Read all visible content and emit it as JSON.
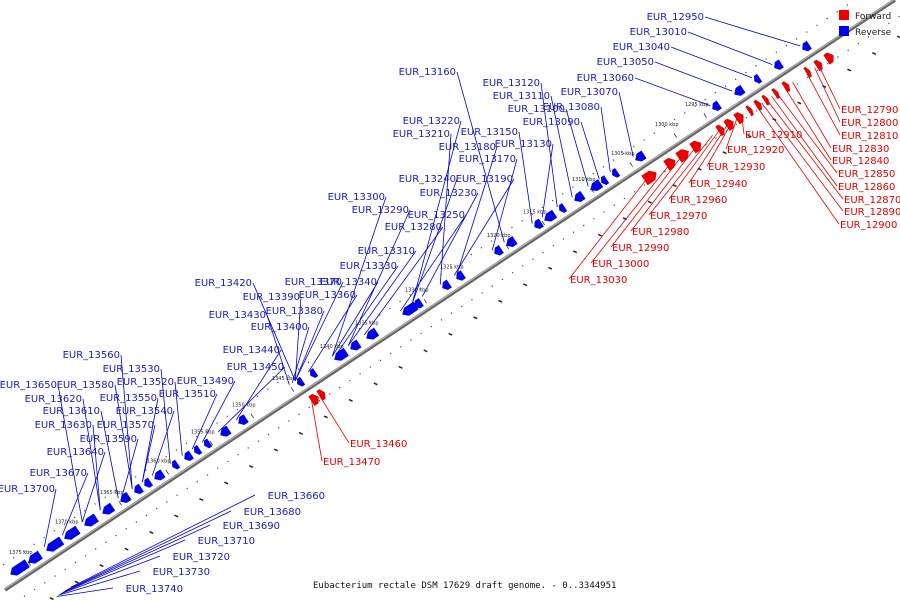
{
  "caption": "Eubacterium rectale DSM 17629 draft genome. - 0..3344951",
  "legend": [
    {
      "label": "Forward",
      "color": "#ee0000"
    },
    {
      "label": "Reverse",
      "color": "#0000ee"
    }
  ],
  "scale_ticks": [
    "1295 kbp",
    "1300 kbp",
    "1305 kbp",
    "1310 kbp",
    "1315 kbp",
    "1320 kbp",
    "1325 kbp",
    "1330 kbp",
    "1335 kbp",
    "1340 kbp",
    "1345 kbp",
    "1350 kbp",
    "1355 kbp",
    "1360 kbp",
    "1365 kbp",
    "1370 kbp",
    "1375 kbp"
  ],
  "forward_genes": [
    "EUR_12790",
    "EUR_12800",
    "EUR_12810",
    "EUR_12830",
    "EUR_12840",
    "EUR_12850",
    "EUR_12860",
    "EUR_12870",
    "EUR_12890",
    "EUR_12900",
    "EUR_12910",
    "EUR_12920",
    "EUR_12930",
    "EUR_12940",
    "EUR_12960",
    "EUR_12970",
    "EUR_12980",
    "EUR_12990",
    "EUR_13000",
    "EUR_13030",
    "EUR_13460",
    "EUR_13470"
  ],
  "reverse_genes": [
    "EUR_12950",
    "EUR_13010",
    "EUR_13040",
    "EUR_13050",
    "EUR_13060",
    "EUR_13070",
    "EUR_13080",
    "EUR_13090",
    "EUR_13100",
    "EUR_13110",
    "EUR_13120",
    "EUR_13130",
    "EUR_13150",
    "EUR_13160",
    "EUR_13170",
    "EUR_13180",
    "EUR_13190",
    "EUR_13210",
    "EUR_13220",
    "EUR_13230",
    "EUR_13240",
    "EUR_13250",
    "EUR_13280",
    "EUR_13290",
    "EUR_13300",
    "EUR_13310",
    "EUR_13330",
    "EUR_13340",
    "EUR_13360",
    "EUR_13370",
    "EUR_13380",
    "EUR_13390",
    "EUR_13400",
    "EUR_13420",
    "EUR_13430",
    "EUR_13440",
    "EUR_13450",
    "EUR_13490",
    "EUR_13510",
    "EUR_13520",
    "EUR_13530",
    "EUR_13540",
    "EUR_13550",
    "EUR_13560",
    "EUR_13570",
    "EUR_13580",
    "EUR_13590",
    "EUR_13610",
    "EUR_13620",
    "EUR_13630",
    "EUR_13640",
    "EUR_13650",
    "EUR_13670",
    "EUR_13700",
    "EUR_13660",
    "EUR_13680",
    "EUR_13690",
    "EUR_13710",
    "EUR_13720",
    "EUR_13730",
    "EUR_13740"
  ]
}
